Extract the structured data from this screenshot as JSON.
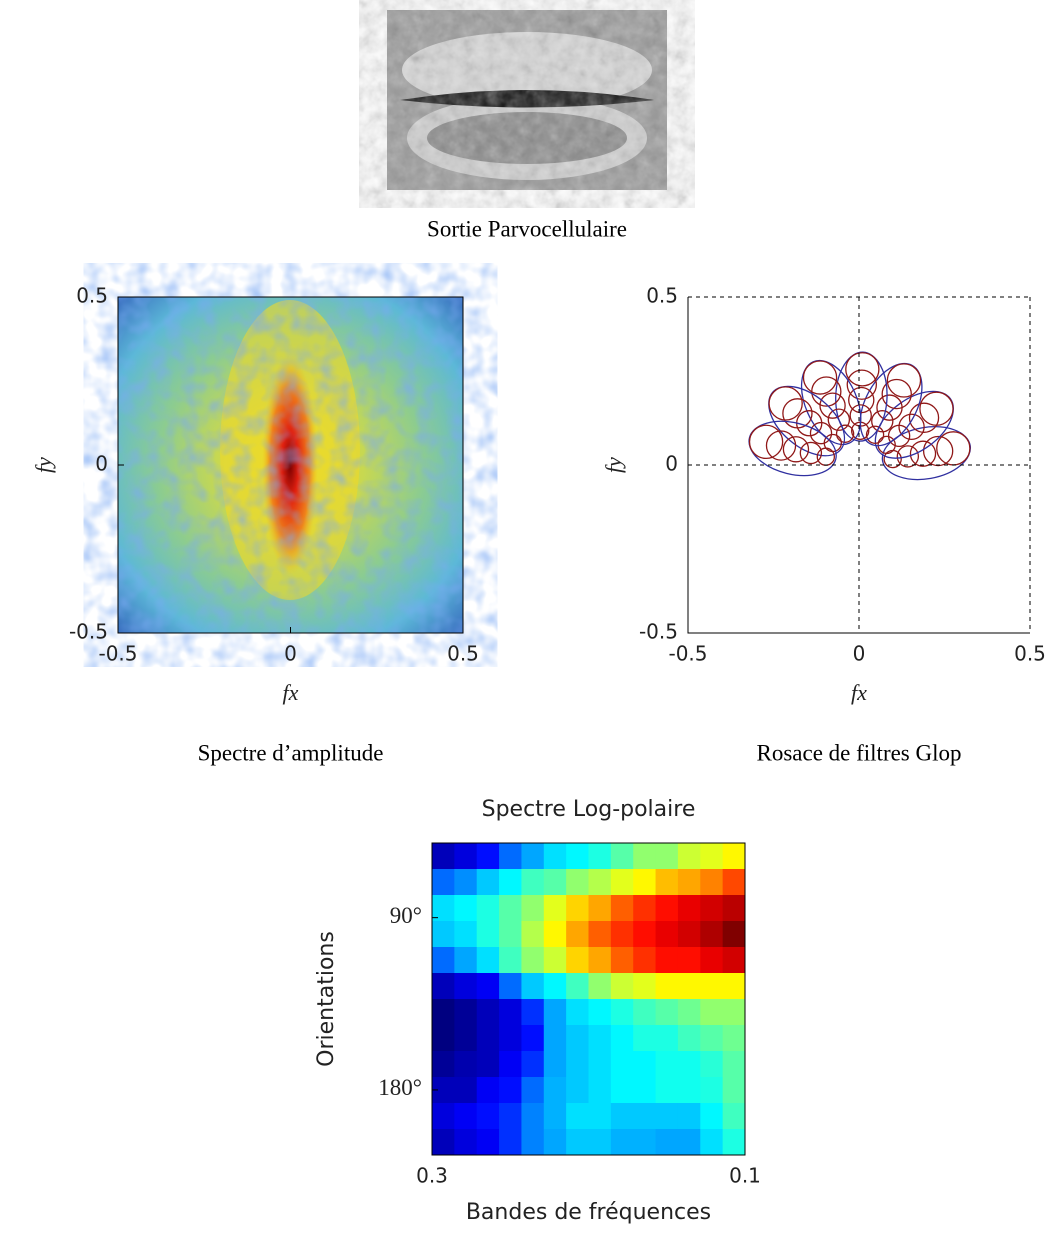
{
  "image_caption": "Sortie Parvocellulaire",
  "chart_data": [
    {
      "type": "image",
      "caption": "Spectre d’amplitude",
      "xlabel": "fx",
      "ylabel": "fy",
      "xlim": [
        -0.5,
        0.5
      ],
      "ylim": [
        -0.5,
        0.5
      ],
      "xticks": [
        -0.5,
        0,
        0.5
      ],
      "yticks": [
        -0.5,
        0,
        0.5
      ]
    },
    {
      "type": "filters",
      "caption": "Rosace de filtres Glop",
      "xlabel": "fx",
      "ylabel": "fy",
      "xlim": [
        -0.5,
        0.5
      ],
      "ylim": [
        -0.5,
        0.5
      ],
      "xticks": [
        -0.5,
        0,
        0.5
      ],
      "yticks": [
        -0.5,
        0,
        0.5
      ],
      "grid": true
    },
    {
      "type": "heatmap",
      "title": "Spectre Log-polaire",
      "xlabel": "Bandes de fréquences",
      "ylabel": "Orientations",
      "xlim": [
        0.3,
        0.1
      ],
      "ylim": [
        51,
        214
      ],
      "yreverse": true,
      "xticks": [
        0.3,
        0.1
      ],
      "yticks": [
        {
          "value": 90,
          "label": "90°"
        },
        {
          "value": 180,
          "label": "180°"
        }
      ],
      "z": [
        [
          0.15,
          0.18,
          0.22,
          0.3,
          0.35,
          0.4,
          0.42,
          0.45,
          0.5,
          0.55,
          0.55,
          0.6,
          0.62,
          0.65
        ],
        [
          0.3,
          0.33,
          0.38,
          0.42,
          0.48,
          0.5,
          0.55,
          0.58,
          0.62,
          0.65,
          0.7,
          0.72,
          0.75,
          0.8
        ],
        [
          0.4,
          0.42,
          0.45,
          0.5,
          0.55,
          0.62,
          0.68,
          0.72,
          0.78,
          0.82,
          0.85,
          0.88,
          0.9,
          0.92
        ],
        [
          0.38,
          0.4,
          0.45,
          0.5,
          0.58,
          0.65,
          0.72,
          0.78,
          0.82,
          0.85,
          0.88,
          0.9,
          0.93,
          0.97
        ],
        [
          0.3,
          0.35,
          0.4,
          0.48,
          0.55,
          0.6,
          0.68,
          0.72,
          0.78,
          0.82,
          0.85,
          0.85,
          0.88,
          0.9
        ],
        [
          0.15,
          0.18,
          0.2,
          0.3,
          0.38,
          0.42,
          0.48,
          0.55,
          0.6,
          0.62,
          0.65,
          0.65,
          0.65,
          0.65
        ],
        [
          0.1,
          0.12,
          0.15,
          0.18,
          0.25,
          0.35,
          0.4,
          0.42,
          0.45,
          0.48,
          0.5,
          0.52,
          0.55,
          0.55
        ],
        [
          0.1,
          0.12,
          0.15,
          0.18,
          0.22,
          0.35,
          0.38,
          0.4,
          0.42,
          0.45,
          0.45,
          0.48,
          0.5,
          0.52
        ],
        [
          0.12,
          0.14,
          0.15,
          0.2,
          0.25,
          0.35,
          0.38,
          0.4,
          0.42,
          0.42,
          0.44,
          0.44,
          0.46,
          0.5
        ],
        [
          0.15,
          0.15,
          0.2,
          0.22,
          0.3,
          0.36,
          0.38,
          0.4,
          0.42,
          0.42,
          0.44,
          0.44,
          0.45,
          0.5
        ],
        [
          0.18,
          0.2,
          0.22,
          0.25,
          0.32,
          0.36,
          0.4,
          0.4,
          0.38,
          0.38,
          0.38,
          0.38,
          0.42,
          0.48
        ],
        [
          0.15,
          0.18,
          0.2,
          0.25,
          0.32,
          0.35,
          0.38,
          0.38,
          0.36,
          0.36,
          0.35,
          0.35,
          0.4,
          0.45
        ]
      ]
    }
  ]
}
